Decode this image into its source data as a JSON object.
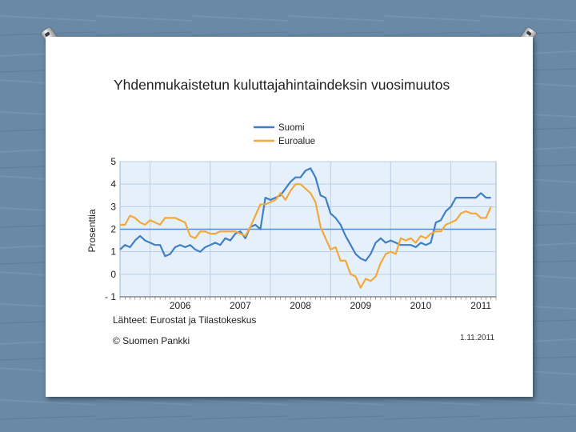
{
  "page": {
    "background_color": "#6b8aa7",
    "slide_color": "#ffffff"
  },
  "chart_title": "Yhdenmukaistetun kuluttajahintaindeksin vuosimuutos",
  "source_note": "Lähteet: Eurostat ja Tilastokeskus",
  "copyright": "© Suomen Pankki",
  "date": "1.11.2011",
  "chart_data": {
    "type": "line",
    "title": "Yhdenmukaistetun kuluttajahintaindeksin vuosimuutos",
    "xlabel": "",
    "ylabel": "Prosenttia",
    "ylim": [
      -1,
      5
    ],
    "yticks": [
      5,
      4,
      3,
      2,
      1,
      0,
      -1
    ],
    "xlim": [
      "2005-07",
      "2011-10"
    ],
    "year_ticks": [
      "2006",
      "2007",
      "2008",
      "2009",
      "2010",
      "2011"
    ],
    "reference_line": {
      "y": 2,
      "color": "#4a90d9"
    },
    "grid": true,
    "legend_position": "top-center",
    "x": [
      "2005-07",
      "2005-08",
      "2005-09",
      "2005-10",
      "2005-11",
      "2005-12",
      "2006-01",
      "2006-02",
      "2006-03",
      "2006-04",
      "2006-05",
      "2006-06",
      "2006-07",
      "2006-08",
      "2006-09",
      "2006-10",
      "2006-11",
      "2006-12",
      "2007-01",
      "2007-02",
      "2007-03",
      "2007-04",
      "2007-05",
      "2007-06",
      "2007-07",
      "2007-08",
      "2007-09",
      "2007-10",
      "2007-11",
      "2007-12",
      "2008-01",
      "2008-02",
      "2008-03",
      "2008-04",
      "2008-05",
      "2008-06",
      "2008-07",
      "2008-08",
      "2008-09",
      "2008-10",
      "2008-11",
      "2008-12",
      "2009-01",
      "2009-02",
      "2009-03",
      "2009-04",
      "2009-05",
      "2009-06",
      "2009-07",
      "2009-08",
      "2009-09",
      "2009-10",
      "2009-11",
      "2009-12",
      "2010-01",
      "2010-02",
      "2010-03",
      "2010-04",
      "2010-05",
      "2010-06",
      "2010-07",
      "2010-08",
      "2010-09",
      "2010-10",
      "2010-11",
      "2010-12",
      "2011-01",
      "2011-02",
      "2011-03",
      "2011-04",
      "2011-05",
      "2011-06",
      "2011-07",
      "2011-08",
      "2011-09"
    ],
    "series": [
      {
        "name": "Suomi",
        "color": "#3f7fc3",
        "values": [
          1.1,
          1.3,
          1.2,
          1.5,
          1.7,
          1.5,
          1.4,
          1.3,
          1.3,
          0.8,
          0.9,
          1.2,
          1.3,
          1.2,
          1.3,
          1.1,
          1.0,
          1.2,
          1.3,
          1.4,
          1.3,
          1.6,
          1.5,
          1.8,
          1.9,
          1.6,
          2.1,
          2.2,
          2.0,
          3.4,
          3.3,
          3.4,
          3.5,
          3.8,
          4.1,
          4.3,
          4.3,
          4.6,
          4.7,
          4.3,
          3.5,
          3.4,
          2.7,
          2.5,
          2.2,
          1.7,
          1.3,
          0.9,
          0.7,
          0.6,
          0.9,
          1.4,
          1.6,
          1.4,
          1.5,
          1.4,
          1.3,
          1.3,
          1.3,
          1.2,
          1.4,
          1.3,
          1.4,
          2.3,
          2.4,
          2.8,
          3.0,
          3.4,
          3.4,
          3.4,
          3.4,
          3.4,
          3.6,
          3.4,
          3.4
        ]
      },
      {
        "name": "Euroalue",
        "color": "#f2a93b",
        "values": [
          2.2,
          2.2,
          2.6,
          2.5,
          2.3,
          2.2,
          2.4,
          2.3,
          2.2,
          2.5,
          2.5,
          2.5,
          2.4,
          2.3,
          1.7,
          1.6,
          1.9,
          1.9,
          1.8,
          1.8,
          1.9,
          1.9,
          1.9,
          1.9,
          1.8,
          1.7,
          2.1,
          2.6,
          3.1,
          3.1,
          3.2,
          3.3,
          3.6,
          3.3,
          3.7,
          4.0,
          4.0,
          3.8,
          3.6,
          3.2,
          2.1,
          1.6,
          1.1,
          1.2,
          0.6,
          0.6,
          0.0,
          -0.1,
          -0.6,
          -0.2,
          -0.3,
          -0.1,
          0.5,
          0.9,
          1.0,
          0.9,
          1.6,
          1.5,
          1.6,
          1.4,
          1.7,
          1.6,
          1.8,
          1.9,
          1.9,
          2.2,
          2.3,
          2.4,
          2.7,
          2.8,
          2.7,
          2.7,
          2.5,
          2.5,
          3.0
        ]
      }
    ]
  }
}
